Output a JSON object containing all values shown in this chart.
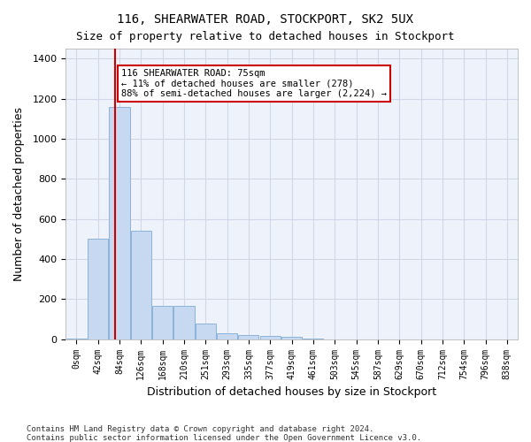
{
  "title_line1": "116, SHEARWATER ROAD, STOCKPORT, SK2 5UX",
  "title_line2": "Size of property relative to detached houses in Stockport",
  "xlabel": "Distribution of detached houses by size in Stockport",
  "ylabel": "Number of detached properties",
  "footer_line1": "Contains HM Land Registry data © Crown copyright and database right 2024.",
  "footer_line2": "Contains public sector information licensed under the Open Government Licence v3.0.",
  "categories": [
    "0sqm",
    "42sqm",
    "84sqm",
    "126sqm",
    "168sqm",
    "210sqm",
    "251sqm",
    "293sqm",
    "335sqm",
    "377sqm",
    "419sqm",
    "461sqm",
    "503sqm",
    "545sqm",
    "587sqm",
    "629sqm",
    "670sqm",
    "712sqm",
    "754sqm",
    "796sqm",
    "838sqm"
  ],
  "values": [
    5,
    500,
    1160,
    540,
    165,
    165,
    80,
    28,
    22,
    15,
    13,
    5,
    0,
    0,
    0,
    0,
    0,
    0,
    0,
    0,
    0
  ],
  "bar_color": "#c6d9f0",
  "bar_edge_color": "#8db3d9",
  "grid_color": "#d0d8e8",
  "background_color": "#eef2fa",
  "vline_x": 75,
  "vline_color": "#cc0000",
  "annotation_text": "116 SHEARWATER ROAD: 75sqm\n← 11% of detached houses are smaller (278)\n88% of semi-detached houses are larger (2,224) →",
  "annotation_box_color": "white",
  "annotation_box_edge_color": "#cc0000",
  "ylim": [
    0,
    1450
  ],
  "yticks": [
    0,
    200,
    400,
    600,
    800,
    1000,
    1200,
    1400
  ],
  "bin_width": 42
}
